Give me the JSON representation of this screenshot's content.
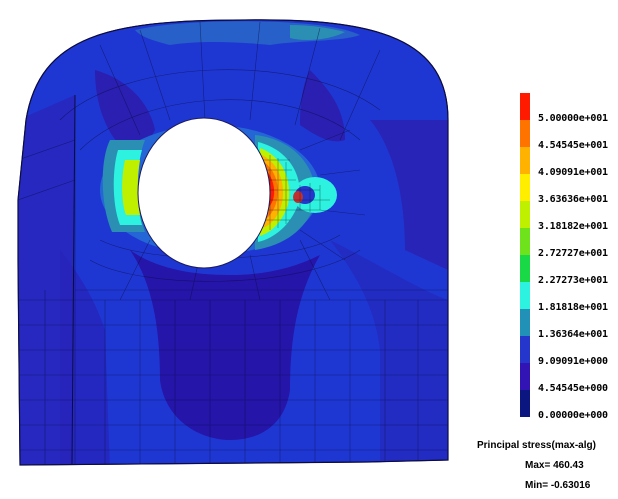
{
  "legend": {
    "title": "Principal stress(max-alg)",
    "max_text": "Max= 460.43",
    "min_text": "Min= -0.63016",
    "levels": [
      {
        "label": "5.00000e+001",
        "color": "#ff1a00"
      },
      {
        "label": "4.54545e+001",
        "color": "#ff7300"
      },
      {
        "label": "4.09091e+001",
        "color": "#ffb300"
      },
      {
        "label": "3.63636e+001",
        "color": "#ffee00"
      },
      {
        "label": "3.18182e+001",
        "color": "#bff000"
      },
      {
        "label": "2.72727e+001",
        "color": "#6ee31c"
      },
      {
        "label": "2.27273e+001",
        "color": "#19d947"
      },
      {
        "label": "1.81818e+001",
        "color": "#2cf2df"
      },
      {
        "label": "1.36364e+001",
        "color": "#2291b8"
      },
      {
        "label": "9.09091e+000",
        "color": "#2436cc"
      },
      {
        "label": "4.54545e+000",
        "color": "#3214b4"
      },
      {
        "label": "0.00000e+000",
        "color": "#0c1680"
      }
    ]
  },
  "colors": {
    "base_blue": "#1f37d2",
    "dark_blue": "#2515a8",
    "teal": "#2a8fb3"
  }
}
